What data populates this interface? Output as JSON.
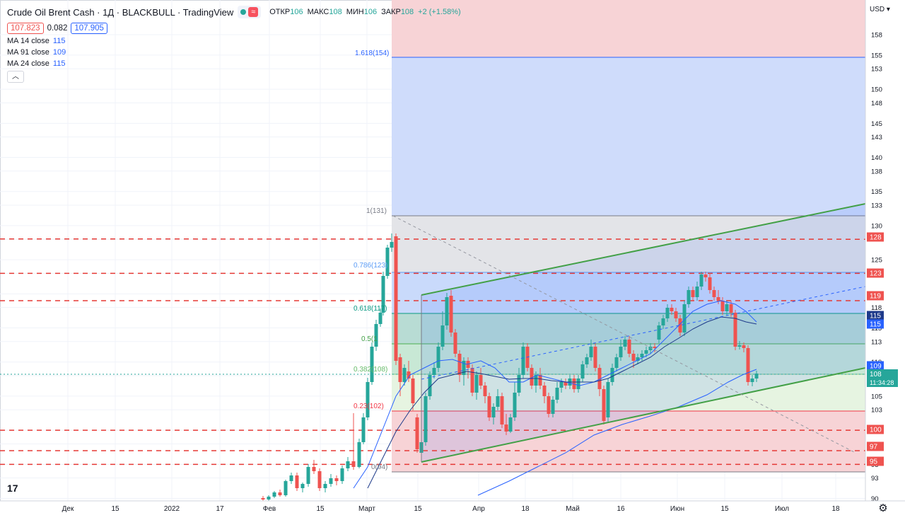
{
  "header": {
    "title": "Crude Oil Brent Cash · 1Д · BLACKBULL · TradingView",
    "ohlc": [
      {
        "label": "ОТКР",
        "value": "106"
      },
      {
        "label": "МАКС",
        "value": "108"
      },
      {
        "label": "МИН",
        "value": "106"
      },
      {
        "label": "ЗАКР",
        "value": "108"
      }
    ],
    "change": "+2 (+1.58%)",
    "bid": "107.823",
    "spread": "0.082",
    "ask": "107.905"
  },
  "indicators": [
    {
      "label": "MA 14 close",
      "value": "115"
    },
    {
      "label": "MA 91 close",
      "value": "109"
    },
    {
      "label": "MA 24 close",
      "value": "115"
    }
  ],
  "currency": "USD",
  "settings_icon": "gear-icon",
  "logo_text": "17",
  "chart_data": {
    "type": "candlestick",
    "y_ticks": [
      158,
      155,
      153,
      150,
      148,
      145,
      143,
      140,
      138,
      135,
      133,
      130,
      128,
      125,
      123,
      120,
      118,
      115,
      113,
      110,
      108,
      105,
      103,
      100,
      98,
      95,
      93,
      90
    ],
    "x_ticks": [
      "Дек",
      "15",
      "2022",
      "17",
      "Фев",
      "15",
      "Март",
      "15",
      "Апр",
      "18",
      "Май",
      "16",
      "Июн",
      "15",
      "Июл",
      "18"
    ],
    "price_badges": [
      {
        "value": "128",
        "color": "#ef5350"
      },
      {
        "value": "123",
        "color": "#ef5350"
      },
      {
        "value": "119",
        "color": "#ef5350"
      },
      {
        "value": "115",
        "color": "#1e3a8a"
      },
      {
        "value": "115",
        "color": "#2962ff"
      },
      {
        "value": "109",
        "color": "#2962ff"
      },
      {
        "value": "108",
        "color": "#26a69a"
      },
      {
        "value": "100",
        "color": "#ef5350"
      },
      {
        "value": "97",
        "color": "#ef5350"
      },
      {
        "value": "95",
        "color": "#ef5350"
      }
    ],
    "countdown": "11:34:28",
    "fib_labels": [
      "1.618(154)",
      "1(131)",
      "0.786(123)",
      "0.618(117)",
      "0.5(1",
      "0.382(108)",
      "0.23(102)",
      "0(94)"
    ],
    "horizontal_levels": [
      128,
      123,
      119,
      100,
      97,
      95
    ]
  }
}
